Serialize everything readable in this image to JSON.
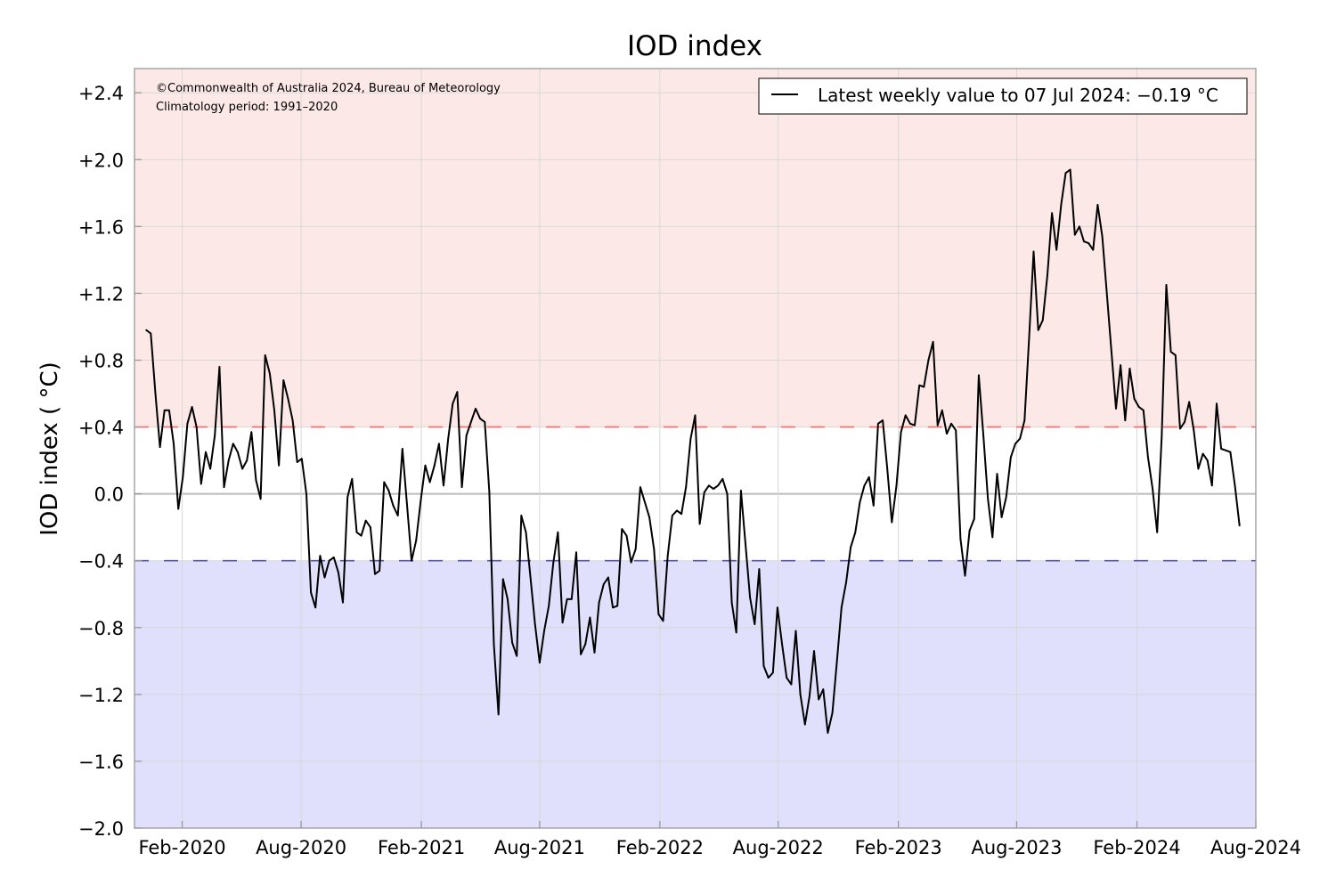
{
  "chart_data": {
    "type": "line",
    "title": "IOD index",
    "xlabel": "",
    "ylabel": "IOD index ( °C)",
    "copyright": "©Commonwealth of Australia 2024, Bureau of Meteorology",
    "climatology": "Climatology period: 1991–2020",
    "legend": {
      "label": "Latest weekly value to 07 Jul 2024: −0.19 °C",
      "placement": "top-right"
    },
    "ylim": [
      -2.0,
      2.545
    ],
    "xlim": [
      "2019-11-20",
      "2024-08-01"
    ],
    "yticks": [
      {
        "value": 2.4,
        "label": "+2.4"
      },
      {
        "value": 2.0,
        "label": "+2.0"
      },
      {
        "value": 1.6,
        "label": "+1.6"
      },
      {
        "value": 1.2,
        "label": "+1.2"
      },
      {
        "value": 0.8,
        "label": "+0.8"
      },
      {
        "value": 0.4,
        "label": "+0.4"
      },
      {
        "value": 0.0,
        "label": "0.0"
      },
      {
        "value": -0.4,
        "label": "−0.4"
      },
      {
        "value": -0.8,
        "label": "−0.8"
      },
      {
        "value": -1.2,
        "label": "−1.2"
      },
      {
        "value": -1.6,
        "label": "−1.6"
      },
      {
        "value": -2.0,
        "label": "−2.0"
      }
    ],
    "xticks": [
      {
        "date": "2020-02-01",
        "label": "Feb-2020"
      },
      {
        "date": "2020-08-01",
        "label": "Aug-2020"
      },
      {
        "date": "2021-02-01",
        "label": "Feb-2021"
      },
      {
        "date": "2021-08-01",
        "label": "Aug-2021"
      },
      {
        "date": "2022-02-01",
        "label": "Feb-2022"
      },
      {
        "date": "2022-08-01",
        "label": "Aug-2022"
      },
      {
        "date": "2023-02-01",
        "label": "Feb-2023"
      },
      {
        "date": "2023-08-01",
        "label": "Aug-2023"
      },
      {
        "date": "2024-02-01",
        "label": "Feb-2024"
      },
      {
        "date": "2024-08-01",
        "label": "Aug-2024"
      }
    ],
    "thresholds": {
      "positive": 0.4,
      "negative": -0.4
    },
    "colors": {
      "positive_band": "#fde8e8",
      "negative_band": "#e0e0fc",
      "positive_line": "#ff6666",
      "negative_line": "#5555aa",
      "series": "#000000",
      "grid": "#d8d8d8"
    },
    "series": [
      {
        "name": "Weekly IOD index",
        "last_date": "2024-07-07",
        "interval_days": 7,
        "values": [
          0.98,
          0.96,
          0.6,
          0.28,
          0.5,
          0.5,
          0.3,
          -0.09,
          0.1,
          0.42,
          0.52,
          0.4,
          0.06,
          0.25,
          0.15,
          0.35,
          0.76,
          0.04,
          0.2,
          0.3,
          0.25,
          0.15,
          0.2,
          0.37,
          0.08,
          -0.03,
          0.83,
          0.72,
          0.5,
          0.17,
          0.68,
          0.57,
          0.44,
          0.19,
          0.21,
          0.0,
          -0.59,
          -0.68,
          -0.37,
          -0.5,
          -0.4,
          -0.38,
          -0.47,
          -0.65,
          -0.02,
          0.09,
          -0.23,
          -0.25,
          -0.16,
          -0.2,
          -0.48,
          -0.46,
          0.07,
          0.02,
          -0.07,
          -0.13,
          0.27,
          -0.06,
          -0.4,
          -0.28,
          -0.04,
          0.17,
          0.07,
          0.17,
          0.3,
          0.05,
          0.33,
          0.54,
          0.61,
          0.04,
          0.35,
          0.43,
          0.51,
          0.45,
          0.43,
          0.01,
          -0.9,
          -1.32,
          -0.51,
          -0.63,
          -0.89,
          -0.97,
          -0.13,
          -0.23,
          -0.5,
          -0.78,
          -1.01,
          -0.82,
          -0.67,
          -0.41,
          -0.23,
          -0.77,
          -0.63,
          -0.63,
          -0.35,
          -0.96,
          -0.9,
          -0.74,
          -0.95,
          -0.65,
          -0.54,
          -0.5,
          -0.68,
          -0.67,
          -0.21,
          -0.25,
          -0.41,
          -0.33,
          0.04,
          -0.05,
          -0.14,
          -0.33,
          -0.72,
          -0.76,
          -0.37,
          -0.13,
          -0.1,
          -0.12,
          0.04,
          0.33,
          0.47,
          -0.18,
          0.01,
          0.05,
          0.03,
          0.05,
          0.09,
          0.0,
          -0.65,
          -0.83,
          0.02,
          -0.3,
          -0.62,
          -0.78,
          -0.45,
          -1.03,
          -1.1,
          -1.07,
          -0.68,
          -0.9,
          -1.1,
          -1.14,
          -0.82,
          -1.2,
          -1.38,
          -1.21,
          -0.94,
          -1.23,
          -1.17,
          -1.43,
          -1.31,
          -1.0,
          -0.68,
          -0.53,
          -0.32,
          -0.23,
          -0.05,
          0.05,
          0.1,
          -0.07,
          0.42,
          0.44,
          0.15,
          -0.17,
          0.05,
          0.37,
          0.47,
          0.42,
          0.41,
          0.65,
          0.64,
          0.8,
          0.91,
          0.41,
          0.5,
          0.36,
          0.42,
          0.38,
          -0.27,
          -0.49,
          -0.22,
          -0.15,
          0.71,
          0.35,
          -0.03,
          -0.26,
          0.12,
          -0.14,
          -0.02,
          0.22,
          0.3,
          0.33,
          0.44,
          0.93,
          1.45,
          0.98,
          1.04,
          1.31,
          1.68,
          1.46,
          1.73,
          1.92,
          1.94,
          1.55,
          1.6,
          1.51,
          1.5,
          1.46,
          1.73,
          1.54,
          1.2,
          0.85,
          0.51,
          0.77,
          0.44,
          0.75,
          0.57,
          0.52,
          0.5,
          0.22,
          0.03,
          -0.23,
          0.34,
          1.25,
          0.85,
          0.83,
          0.39,
          0.43,
          0.55,
          0.38,
          0.15,
          0.24,
          0.2,
          0.05,
          0.54,
          0.27,
          0.26,
          0.25,
          0.05,
          -0.19
        ]
      }
    ]
  }
}
